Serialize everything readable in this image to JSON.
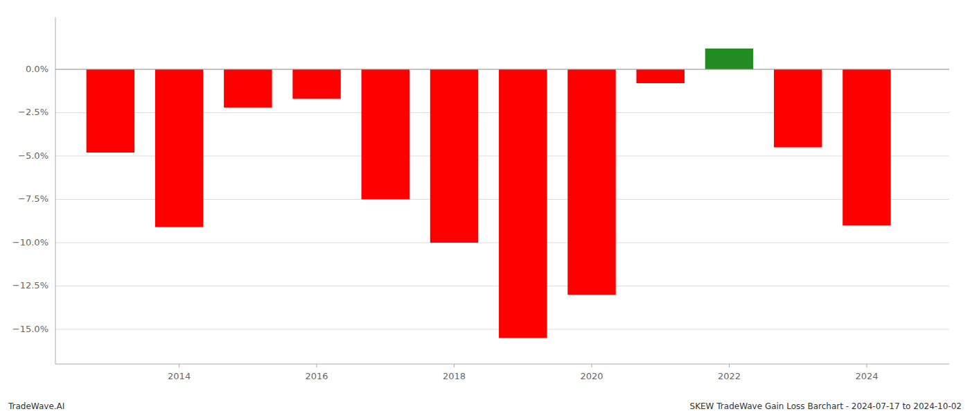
{
  "chart_data": {
    "type": "bar",
    "x": [
      2013,
      2014,
      2015,
      2016,
      2017,
      2018,
      2019,
      2020,
      2021,
      2022,
      2023,
      2024
    ],
    "values": [
      -0.048,
      -0.091,
      -0.022,
      -0.017,
      -0.075,
      -0.1,
      -0.155,
      -0.13,
      -0.008,
      0.012,
      -0.045,
      -0.09
    ],
    "colors": [
      "#ff0000",
      "#ff0000",
      "#ff0000",
      "#ff0000",
      "#ff0000",
      "#ff0000",
      "#ff0000",
      "#ff0000",
      "#ff0000",
      "#228b22",
      "#ff0000",
      "#ff0000"
    ],
    "xlim": [
      2012.2,
      2025.2
    ],
    "xticks": [
      2014,
      2016,
      2018,
      2020,
      2022,
      2024
    ],
    "ylim": [
      -0.17,
      0.03
    ],
    "yticks": [
      {
        "value": 0.0,
        "label": "0.0%"
      },
      {
        "value": -0.025,
        "label": "−2.5%"
      },
      {
        "value": -0.05,
        "label": "−5.0%"
      },
      {
        "value": -0.075,
        "label": "−7.5%"
      },
      {
        "value": -0.1,
        "label": "−10.0%"
      },
      {
        "value": -0.125,
        "label": "−12.5%"
      },
      {
        "value": -0.15,
        "label": "−15.0%"
      }
    ],
    "grid": true,
    "annotations": [
      "TradeWave.AI",
      "SKEW TradeWave Gain Loss Barchart - 2024-07-17 to 2024-10-02"
    ]
  }
}
